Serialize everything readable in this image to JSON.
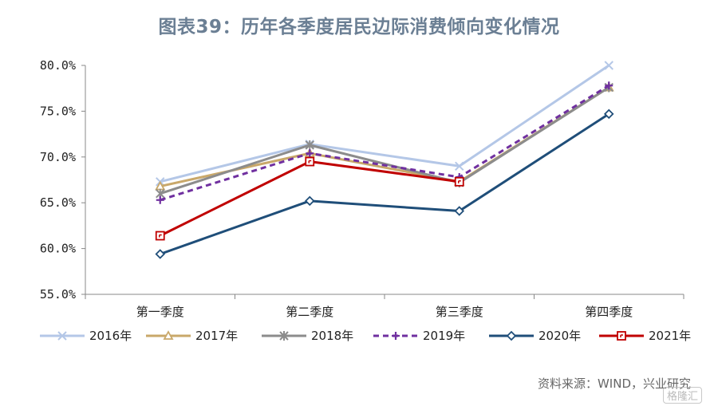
{
  "title": "图表39：历年各季度居民边际消费倾向变化情况",
  "source": "资料来源：WIND，兴业研究",
  "watermark": "格隆汇",
  "chart_data": {
    "type": "line",
    "title": "图表39：历年各季度居民边际消费倾向变化情况",
    "categories": [
      "第一季度",
      "第二季度",
      "第三季度",
      "第四季度"
    ],
    "ylim": [
      55.0,
      80.0
    ],
    "yticks": [
      55.0,
      60.0,
      65.0,
      70.0,
      75.0,
      80.0
    ],
    "ytick_labels": [
      "55.0%",
      "60.0%",
      "65.0%",
      "70.0%",
      "75.0%",
      "80.0%"
    ],
    "xlabel": "",
    "ylabel": "",
    "legend_position": "bottom",
    "series": [
      {
        "name": "2016年",
        "values": [
          67.3,
          71.4,
          69.0,
          80.0
        ],
        "color": "#b4c7e7",
        "marker": "x",
        "dash": false
      },
      {
        "name": "2017年",
        "values": [
          66.8,
          70.4,
          67.3,
          77.6
        ],
        "color": "#c9a86a",
        "marker": "triangle",
        "dash": false
      },
      {
        "name": "2018年",
        "values": [
          66.0,
          71.3,
          67.2,
          77.6
        ],
        "color": "#8c8c8c",
        "marker": "star",
        "dash": false
      },
      {
        "name": "2019年",
        "values": [
          65.3,
          70.4,
          67.8,
          77.8
        ],
        "color": "#7030a0",
        "marker": "plus",
        "dash": true
      },
      {
        "name": "2020年",
        "values": [
          59.4,
          65.2,
          64.1,
          74.7
        ],
        "color": "#1f4e79",
        "marker": "diamond",
        "dash": false
      },
      {
        "name": "2021年",
        "values": [
          61.4,
          69.5,
          67.3,
          null
        ],
        "color": "#c00000",
        "marker": "square",
        "dash": false
      }
    ]
  }
}
